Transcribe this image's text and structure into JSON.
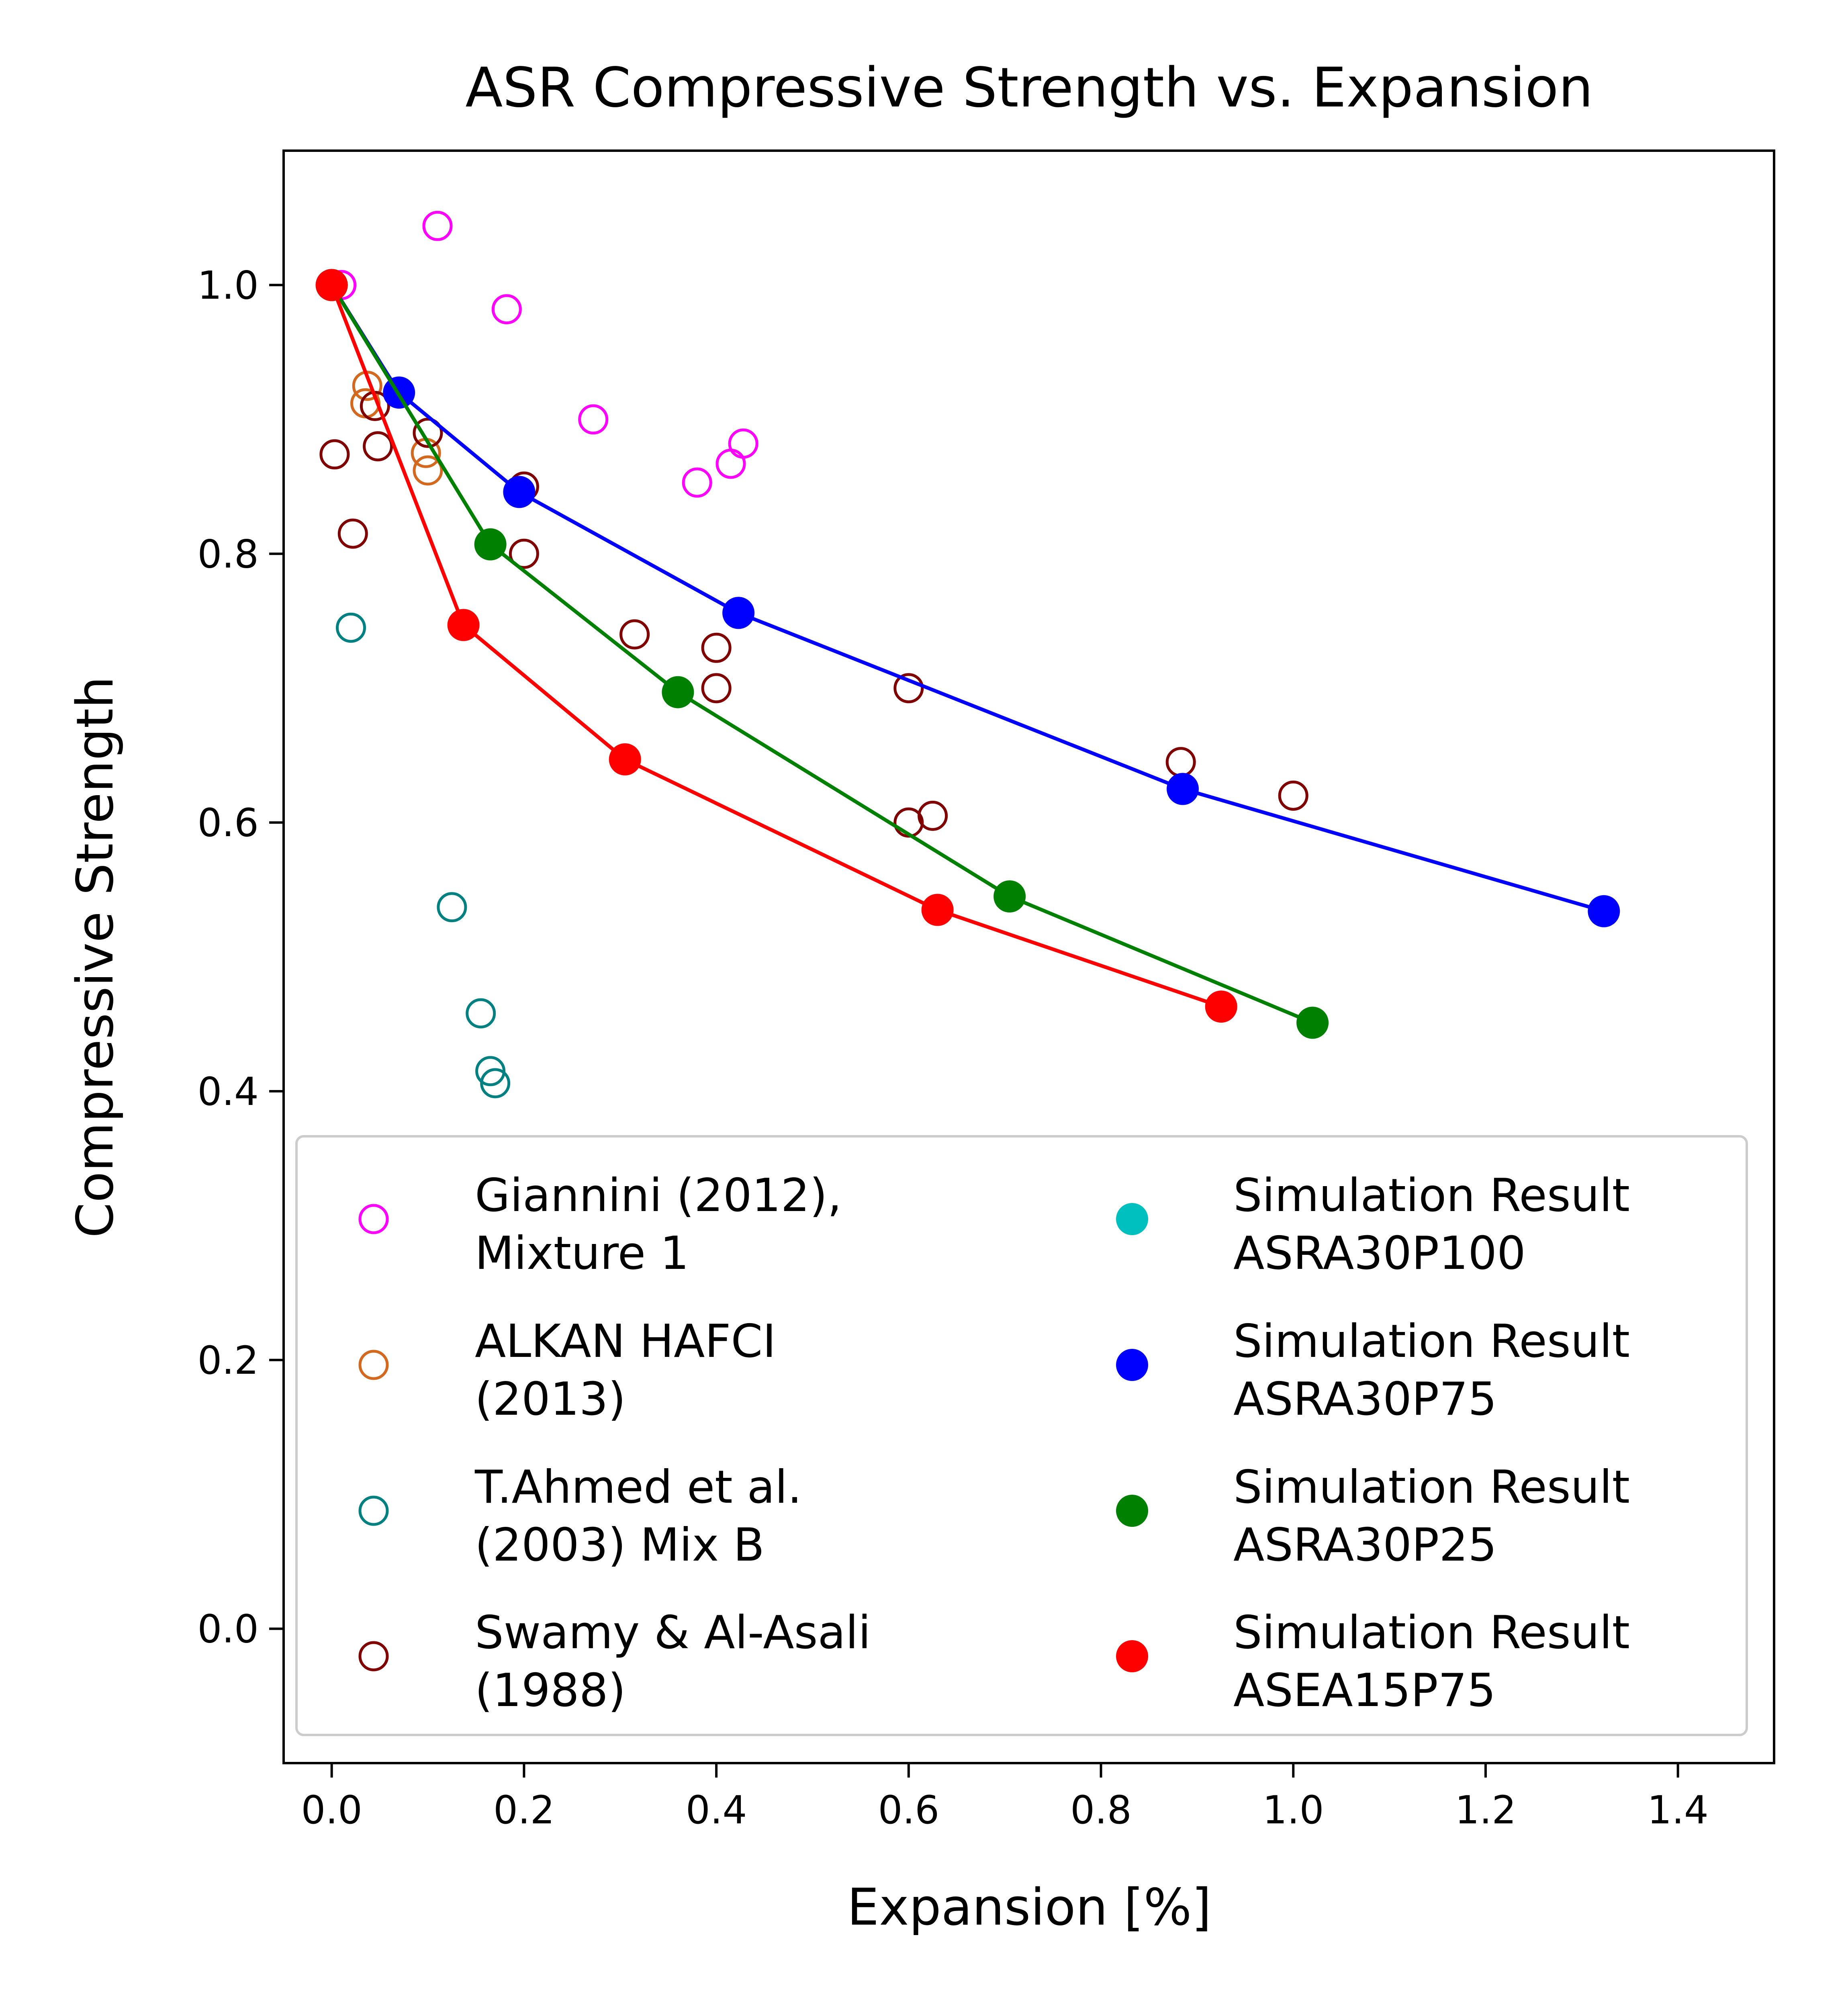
{
  "chart_data": {
    "type": "scatter",
    "title": "ASR Compressive Strength vs. Expansion",
    "xlabel": "Expansion [%]",
    "ylabel": "Compressive Strength",
    "xlim": [
      -0.05,
      1.5
    ],
    "ylim": [
      -0.1,
      1.1
    ],
    "x_ticks": [
      0.0,
      0.2,
      0.4,
      0.6,
      0.8,
      1.0,
      1.2,
      1.4
    ],
    "y_ticks": [
      0.0,
      0.2,
      0.4,
      0.6,
      0.8,
      1.0
    ],
    "x_tick_labels": [
      "0.0",
      "0.2",
      "0.4",
      "0.6",
      "0.8",
      "1.0",
      "1.2",
      "1.4"
    ],
    "y_tick_labels": [
      "0.0",
      "0.2",
      "0.4",
      "0.6",
      "0.8",
      "1.0"
    ],
    "grid": false,
    "legend_position": "lower-center",
    "legend_columns": 2,
    "series": [
      {
        "name": "Giannini (2012), Mixture 1",
        "legend_lines": [
          "Giannini (2012),",
          "Mixture 1"
        ],
        "color": "#ff00ff",
        "marker": "open-circle",
        "line": false,
        "points": [
          [
            0.01,
            1.0
          ],
          [
            0.11,
            1.044
          ],
          [
            0.182,
            0.982
          ],
          [
            0.272,
            0.9
          ],
          [
            0.38,
            0.853
          ],
          [
            0.415,
            0.867
          ],
          [
            0.428,
            0.882
          ]
        ]
      },
      {
        "name": "ALKAN HAFCI (2013)",
        "legend_lines": [
          "ALKAN HAFCI",
          "(2013)"
        ],
        "color": "#d2691e",
        "marker": "open-circle",
        "line": false,
        "points": [
          [
            0.037,
            0.925
          ],
          [
            0.035,
            0.912
          ],
          [
            0.098,
            0.875
          ],
          [
            0.1,
            0.862
          ]
        ]
      },
      {
        "name": "T.Ahmed et al. (2003) Mix B",
        "legend_lines": [
          "T.Ahmed et al.",
          "(2003) Mix B"
        ],
        "color": "#008080",
        "marker": "open-circle",
        "line": false,
        "points": [
          [
            0.02,
            0.745
          ],
          [
            0.125,
            0.537
          ],
          [
            0.155,
            0.458
          ],
          [
            0.165,
            0.415
          ],
          [
            0.17,
            0.406
          ]
        ]
      },
      {
        "name": "Swamy & Al-Asali (1988)",
        "legend_lines": [
          "Swamy & Al-Asali",
          "(1988)"
        ],
        "color": "#800000",
        "marker": "open-circle",
        "line": false,
        "points": [
          [
            0.003,
            0.874
          ],
          [
            0.022,
            0.815
          ],
          [
            0.045,
            0.91
          ],
          [
            0.048,
            0.88
          ],
          [
            0.1,
            0.89
          ],
          [
            0.2,
            0.85
          ],
          [
            0.2,
            0.8
          ],
          [
            0.315,
            0.74
          ],
          [
            0.4,
            0.73
          ],
          [
            0.4,
            0.7
          ],
          [
            0.6,
            0.7
          ],
          [
            0.6,
            0.6
          ],
          [
            0.625,
            0.605
          ],
          [
            0.883,
            0.645
          ],
          [
            1.0,
            0.62
          ]
        ]
      },
      {
        "name": "Simulation Result ASRA30P100",
        "legend_lines": [
          "Simulation Result",
          "ASRA30P100"
        ],
        "color": "#00bfbf",
        "marker": "filled-circle",
        "line": false,
        "points": []
      },
      {
        "name": "Simulation Result ASRA30P75",
        "legend_lines": [
          "Simulation Result",
          "ASRA30P75"
        ],
        "color": "#0000ff",
        "marker": "filled-circle",
        "line": true,
        "points": [
          [
            0.0,
            1.0
          ],
          [
            0.07,
            0.92
          ],
          [
            0.195,
            0.846
          ],
          [
            0.423,
            0.756
          ],
          [
            0.885,
            0.625
          ],
          [
            1.323,
            0.534
          ]
        ]
      },
      {
        "name": "Simulation Result ASRA30P25",
        "legend_lines": [
          "Simulation Result",
          "ASRA30P25"
        ],
        "color": "#008000",
        "marker": "filled-circle",
        "line": true,
        "points": [
          [
            0.0,
            1.0
          ],
          [
            0.165,
            0.807
          ],
          [
            0.36,
            0.697
          ],
          [
            0.705,
            0.545
          ],
          [
            1.02,
            0.451
          ]
        ]
      },
      {
        "name": "Simulation Result ASEA15P75",
        "legend_lines": [
          "Simulation Result",
          "ASEA15P75"
        ],
        "color": "#ff0000",
        "marker": "filled-circle",
        "line": true,
        "points": [
          [
            0.0,
            1.0
          ],
          [
            0.137,
            0.747
          ],
          [
            0.305,
            0.647
          ],
          [
            0.63,
            0.535
          ],
          [
            0.925,
            0.463
          ]
        ]
      }
    ]
  }
}
